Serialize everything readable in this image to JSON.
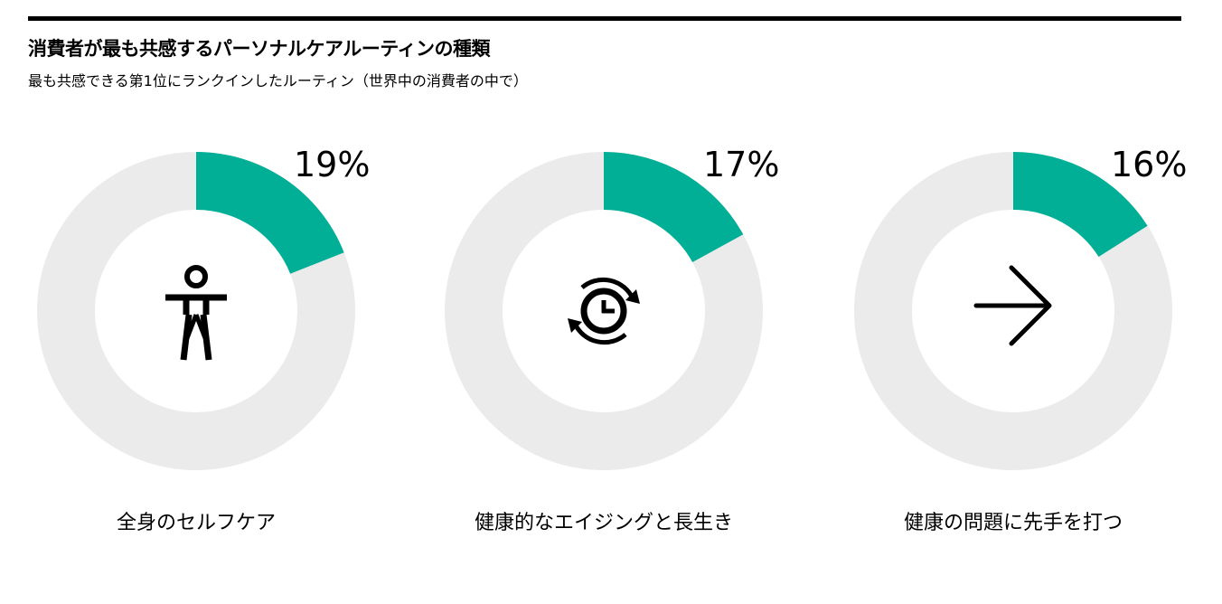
{
  "title": "消費者が最も共感するパーソナルケアルーティンの種類",
  "subtitle": "最も共感できる第1位にランクインしたルーティン（世界中の消費者の中で）",
  "colors": {
    "accent": "#00af95",
    "track": "#ebebeb",
    "rule": "#000000"
  },
  "chart_data": [
    {
      "type": "pie",
      "style": "donut",
      "value": 19,
      "percent_label": "19%",
      "category": "全身のセルフケア",
      "icon": "body-figure-icon"
    },
    {
      "type": "pie",
      "style": "donut",
      "value": 17,
      "percent_label": "17%",
      "category": "健康的なエイジングと長生き",
      "icon": "clock-cycle-icon"
    },
    {
      "type": "pie",
      "style": "donut",
      "value": 16,
      "percent_label": "16%",
      "category": "健康の問題に先手を打つ",
      "icon": "arrow-right-icon"
    }
  ]
}
